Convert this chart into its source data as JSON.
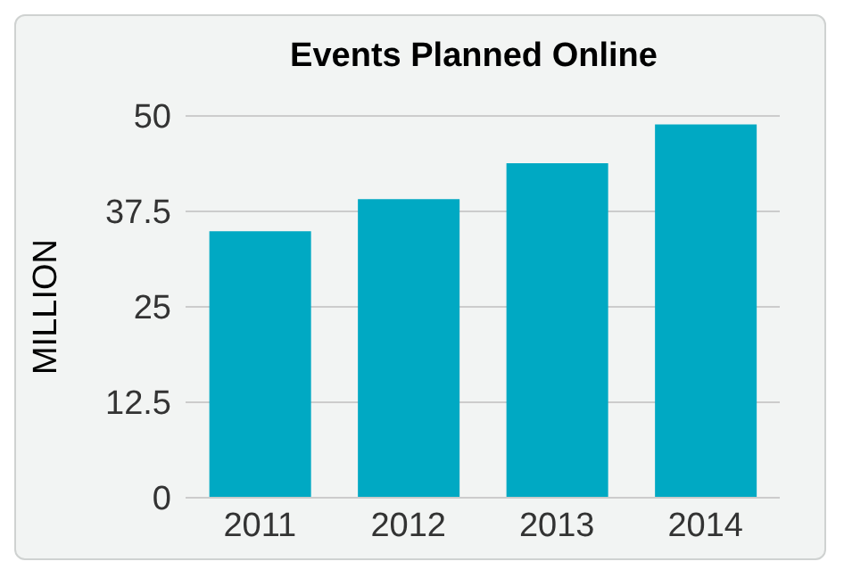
{
  "chart_data": {
    "type": "bar",
    "title": "Events Planned Online",
    "ylabel": "MILLION",
    "categories": [
      "2011",
      "2012",
      "2013",
      "2014"
    ],
    "values": [
      34.9,
      39.1,
      43.8,
      48.9
    ],
    "color": "#00a9c3",
    "ylim": [
      0,
      50
    ],
    "yticks": [
      0,
      12.5,
      25,
      37.5,
      50
    ],
    "grid": "y"
  }
}
